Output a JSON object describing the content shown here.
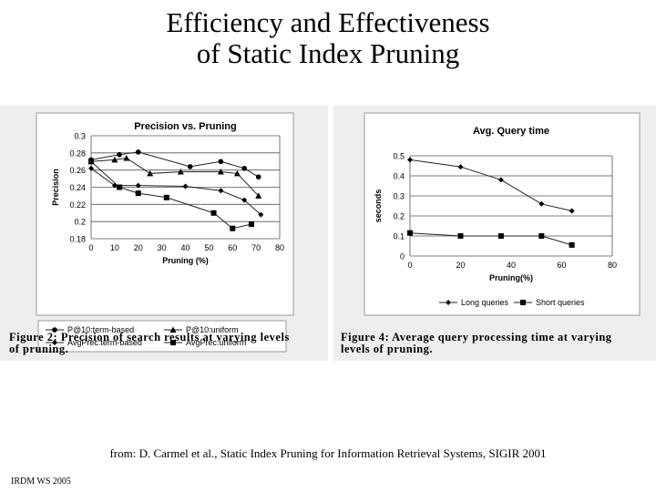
{
  "slide": {
    "title_line1": "Efficiency and Effectiveness",
    "title_line2": "of Static Index Pruning",
    "citation": "from: D. Carmel et al., Static Index Pruning for Information Retrieval Systems, SIGIR 2001",
    "footer": "IRDM WS 2005"
  },
  "figures": [
    {
      "caption_line1": "Figure 2:  Precision of search results at varying levels",
      "caption_line2": "of pruning."
    },
    {
      "caption_line1": "Figure 4:  Average query processing time at varying",
      "caption_line2": "levels of pruning."
    }
  ],
  "chart_data": [
    {
      "type": "line",
      "title": "Precision vs. Pruning",
      "xlabel": "Pruning (%)",
      "ylabel": "Precision",
      "xlim": [
        0,
        80
      ],
      "ylim": [
        0.18,
        0.3
      ],
      "xticks": [
        "0",
        "10",
        "20",
        "30",
        "40",
        "50",
        "60",
        "70",
        "80"
      ],
      "yticks": [
        "0.18",
        "0.2",
        "0.22",
        "0.24",
        "0.26",
        "0.28",
        "0.3"
      ],
      "grid": "horizontal",
      "legend_position": "bottom",
      "series": [
        {
          "name": "P@10:term-based",
          "marker": "circle",
          "x": [
            0,
            12,
            20,
            42,
            55,
            65,
            71
          ],
          "y": [
            0.272,
            0.278,
            0.281,
            0.264,
            0.27,
            0.262,
            0.252
          ]
        },
        {
          "name": "P@10:uniform",
          "marker": "triangle",
          "x": [
            0,
            10,
            15,
            25,
            38,
            55,
            62,
            71
          ],
          "y": [
            0.27,
            0.272,
            0.274,
            0.256,
            0.258,
            0.258,
            0.256,
            0.23
          ]
        },
        {
          "name": "AvgPrec:term-based",
          "marker": "diamond",
          "x": [
            0,
            10,
            20,
            40,
            55,
            65,
            72
          ],
          "y": [
            0.262,
            0.242,
            0.242,
            0.241,
            0.236,
            0.225,
            0.208
          ]
        },
        {
          "name": "AvgPrec:uniform",
          "marker": "square",
          "x": [
            0,
            12,
            20,
            32,
            52,
            60,
            68
          ],
          "y": [
            0.27,
            0.24,
            0.233,
            0.228,
            0.21,
            0.192,
            0.197
          ]
        }
      ]
    },
    {
      "type": "line",
      "title": "Avg. Query time",
      "xlabel": "Pruning(%)",
      "ylabel": "seconds",
      "xlim": [
        0,
        80
      ],
      "ylim": [
        0,
        0.5
      ],
      "xticks": [
        "0",
        "20",
        "40",
        "60",
        "80"
      ],
      "yticks": [
        "0",
        "0.1",
        "0.2",
        "0.3",
        "0.4",
        "0.5"
      ],
      "grid": "horizontal",
      "legend_position": "bottom",
      "series": [
        {
          "name": "Long queries",
          "marker": "diamond",
          "x": [
            0,
            20,
            36,
            52,
            64
          ],
          "y": [
            0.48,
            0.445,
            0.38,
            0.26,
            0.225
          ]
        },
        {
          "name": "Short queries",
          "marker": "square",
          "x": [
            0,
            20,
            36,
            52,
            64
          ],
          "y": [
            0.115,
            0.1,
            0.1,
            0.1,
            0.055
          ]
        }
      ]
    }
  ]
}
